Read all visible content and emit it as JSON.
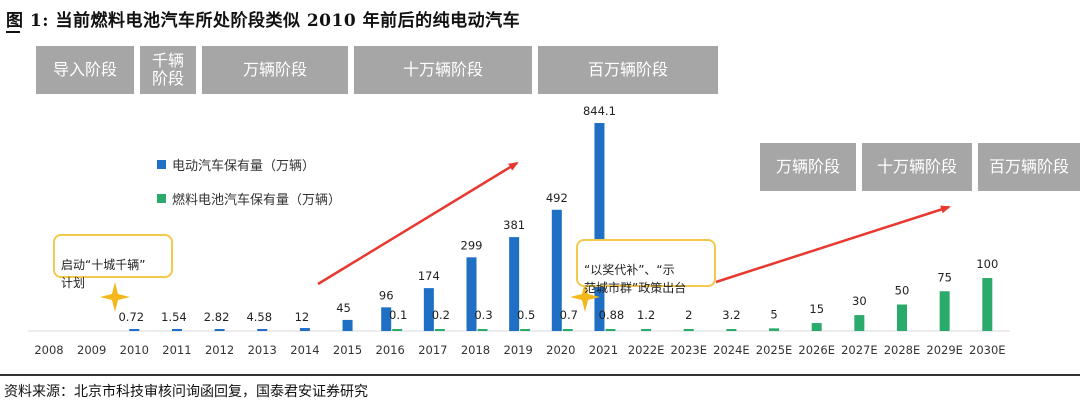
{
  "figure": {
    "title": "图 1:  当前燃料电池汽车所处阶段类似 2010 年前后的纯电动汽车",
    "source": "资料来源：北京市科技审核问询函回复，国泰君安证券研究"
  },
  "stages_top": [
    {
      "label": "导入阶段"
    },
    {
      "label": "千辆\n阶段"
    },
    {
      "label": "万辆阶段"
    },
    {
      "label": "十万辆阶段"
    },
    {
      "label": "百万辆阶段"
    }
  ],
  "stages_right": [
    {
      "label": "万辆阶段"
    },
    {
      "label": "十万辆阶段"
    },
    {
      "label": "百万辆阶段"
    }
  ],
  "callouts": {
    "left": "启动“十城千辆”\n计划",
    "right": "“以奖代补”、“示\n范城市群”政策出台"
  },
  "colors": {
    "ev": "#1f6fc5",
    "fcv": "#2bab6b",
    "arrow": "#e8382f",
    "star": "#f5b81a",
    "stage_box": "#a6a6a6",
    "callout_border": "#f2c94c"
  },
  "chart_data": {
    "type": "bar",
    "categories": [
      "2008",
      "2009",
      "2010",
      "2011",
      "2012",
      "2013",
      "2014",
      "2015",
      "2016",
      "2017",
      "2018",
      "2019",
      "2020",
      "2021",
      "2022E",
      "2023E",
      "2024E",
      "2025E",
      "2026E",
      "2027E",
      "2028E",
      "2029E",
      "2030E"
    ],
    "series": [
      {
        "name": "电动汽车保有量（万辆）",
        "color": "#1f6fc5",
        "values": [
          null,
          null,
          0.72,
          1.54,
          2.82,
          4.58,
          12,
          45,
          96,
          174,
          299,
          381,
          492,
          844.1,
          null,
          null,
          null,
          null,
          null,
          null,
          null,
          null,
          null
        ]
      },
      {
        "name": "燃料电池汽车保有量（万辆）",
        "color": "#2bab6b",
        "values": [
          null,
          null,
          null,
          null,
          null,
          null,
          null,
          null,
          0.1,
          0.2,
          0.3,
          0.5,
          0.7,
          0.88,
          1.2,
          2,
          3.2,
          5,
          15,
          30,
          50,
          75,
          100
        ]
      }
    ],
    "legend_position": "left-middle",
    "grid": false
  }
}
